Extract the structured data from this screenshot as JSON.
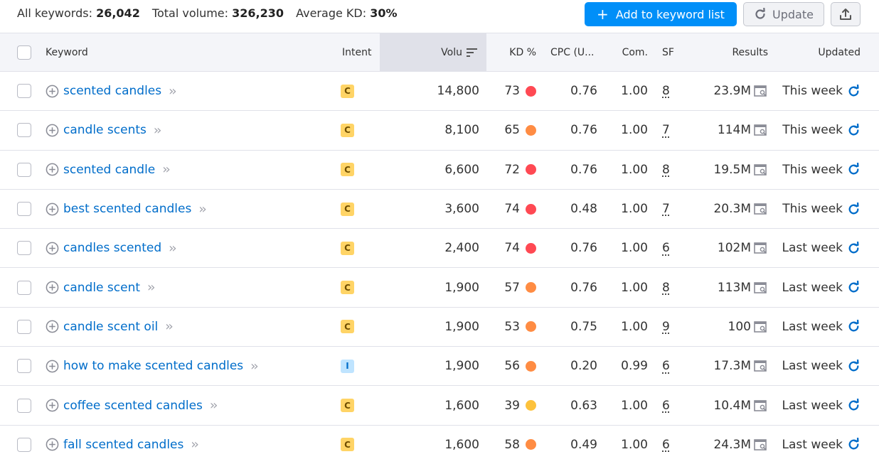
{
  "summary": {
    "all_keywords_label": "All keywords:",
    "all_keywords_value": "26,042",
    "total_volume_label": "Total volume:",
    "total_volume_value": "326,230",
    "average_kd_label": "Average KD:",
    "average_kd_value": "30%"
  },
  "toolbar": {
    "add_label": "Add to keyword list",
    "update_label": "Update",
    "export_icon": "export-icon"
  },
  "columns": {
    "keyword": "Keyword",
    "intent": "Intent",
    "volume": "Volu",
    "kd": "KD %",
    "cpc": "CPC (U...",
    "com": "Com.",
    "sf": "SF",
    "results": "Results",
    "updated": "Updated"
  },
  "colors": {
    "accent": "#008ff8",
    "link": "#006dca",
    "kd_red": "#ff4953",
    "kd_orange": "#ff8c43",
    "kd_yellow": "#fdc23c",
    "intent_commercial": "#ffd466",
    "intent_informational": "#bfe4ff"
  },
  "rows": [
    {
      "keyword": "scented candles",
      "intent": "C",
      "volume": "14,800",
      "kd": "73",
      "kd_color": "#ff4953",
      "cpc": "0.76",
      "com": "1.00",
      "sf": "8",
      "results": "23.9M",
      "updated": "This week"
    },
    {
      "keyword": "candle scents",
      "intent": "C",
      "volume": "8,100",
      "kd": "65",
      "kd_color": "#ff8c43",
      "cpc": "0.76",
      "com": "1.00",
      "sf": "7",
      "results": "114M",
      "updated": "This week"
    },
    {
      "keyword": "scented candle",
      "intent": "C",
      "volume": "6,600",
      "kd": "72",
      "kd_color": "#ff4953",
      "cpc": "0.76",
      "com": "1.00",
      "sf": "8",
      "results": "19.5M",
      "updated": "This week"
    },
    {
      "keyword": "best scented candles",
      "intent": "C",
      "volume": "3,600",
      "kd": "74",
      "kd_color": "#ff4953",
      "cpc": "0.48",
      "com": "1.00",
      "sf": "7",
      "results": "20.3M",
      "updated": "This week"
    },
    {
      "keyword": "candles scented",
      "intent": "C",
      "volume": "2,400",
      "kd": "74",
      "kd_color": "#ff4953",
      "cpc": "0.76",
      "com": "1.00",
      "sf": "6",
      "results": "102M",
      "updated": "Last week"
    },
    {
      "keyword": "candle scent",
      "intent": "C",
      "volume": "1,900",
      "kd": "57",
      "kd_color": "#ff8c43",
      "cpc": "0.76",
      "com": "1.00",
      "sf": "8",
      "results": "113M",
      "updated": "Last week"
    },
    {
      "keyword": "candle scent oil",
      "intent": "C",
      "volume": "1,900",
      "kd": "53",
      "kd_color": "#ff8c43",
      "cpc": "0.75",
      "com": "1.00",
      "sf": "9",
      "results": "100",
      "updated": "Last week"
    },
    {
      "keyword": "how to make scented candles",
      "intent": "I",
      "volume": "1,900",
      "kd": "56",
      "kd_color": "#ff8c43",
      "cpc": "0.20",
      "com": "0.99",
      "sf": "6",
      "results": "17.3M",
      "updated": "Last week"
    },
    {
      "keyword": "coffee scented candles",
      "intent": "C",
      "volume": "1,600",
      "kd": "39",
      "kd_color": "#fdc23c",
      "cpc": "0.63",
      "com": "1.00",
      "sf": "6",
      "results": "10.4M",
      "updated": "Last week"
    },
    {
      "keyword": "fall scented candles",
      "intent": "C",
      "volume": "1,600",
      "kd": "58",
      "kd_color": "#ff8c43",
      "cpc": "0.49",
      "com": "1.00",
      "sf": "6",
      "results": "24.3M",
      "updated": "Last week"
    }
  ]
}
